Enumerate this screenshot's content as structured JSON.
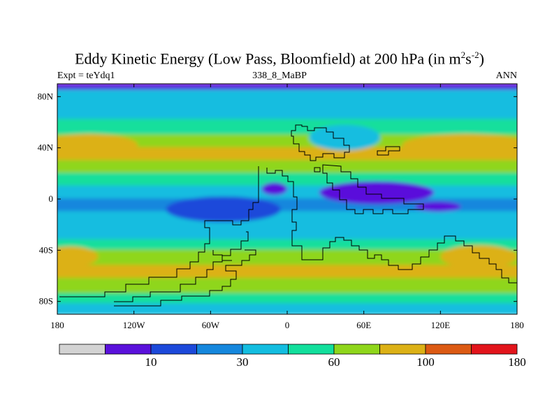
{
  "chart_data": {
    "type": "heatmap",
    "title": "Eddy Kinetic Energy (Low Pass, Bloomfield) at 200 hPa (in m",
    "title_sup1": "2",
    "title_mid": "s",
    "title_sup2": "-2",
    "title_end": ")",
    "subtitle_left": "Expt = teYdq1",
    "subtitle_center": "338_8_MaBP",
    "subtitle_right": "ANN",
    "x_range": [
      -180,
      180
    ],
    "y_range": [
      -90,
      90
    ],
    "x_ticks": [
      {
        "value": -180,
        "label": "180"
      },
      {
        "value": -120,
        "label": "120W"
      },
      {
        "value": -60,
        "label": "60W"
      },
      {
        "value": 0,
        "label": "0"
      },
      {
        "value": 60,
        "label": "60E"
      },
      {
        "value": 120,
        "label": "120E"
      },
      {
        "value": 180,
        "label": "180"
      }
    ],
    "y_ticks": [
      {
        "value": 80,
        "label": "80N"
      },
      {
        "value": 40,
        "label": "40N"
      },
      {
        "value": 0,
        "label": "0"
      },
      {
        "value": -40,
        "label": "40S"
      },
      {
        "value": -80,
        "label": "80S"
      }
    ],
    "colorbar": {
      "colors": [
        "#d3d3d3",
        "#5a11db",
        "#1c49da",
        "#1587dd",
        "#13bde0",
        "#12df9c",
        "#8fd61b",
        "#dcb116",
        "#dc5a13",
        "#e2141b"
      ],
      "labels": [
        {
          "boundary": 2,
          "label": "10"
        },
        {
          "boundary": 4,
          "label": "30"
        },
        {
          "boundary": 6,
          "label": "60"
        },
        {
          "boundary": 8,
          "label": "100"
        },
        {
          "boundary": 10,
          "label": "180"
        }
      ]
    },
    "bands": [
      {
        "lat": 90,
        "level": 1
      },
      {
        "lat": 85,
        "level": 4
      },
      {
        "lat": 75,
        "level": 4
      },
      {
        "lat": 62,
        "level": 5
      },
      {
        "lat": 50,
        "level": 6
      },
      {
        "lat": 40,
        "level": 7
      },
      {
        "lat": 30,
        "level": 6
      },
      {
        "lat": 20,
        "level": 5
      },
      {
        "lat": 10,
        "level": 4
      },
      {
        "lat": 0,
        "level": 3
      },
      {
        "lat": -10,
        "level": 4
      },
      {
        "lat": -22,
        "level": 4
      },
      {
        "lat": -32,
        "level": 5
      },
      {
        "lat": -40,
        "level": 6
      },
      {
        "lat": -52,
        "level": 7
      },
      {
        "lat": -62,
        "level": 6
      },
      {
        "lat": -74,
        "level": 5
      },
      {
        "lat": -82,
        "level": 4
      },
      {
        "lat": -90,
        "level": 3
      }
    ],
    "blobs": [
      {
        "region": "north-atlantic-jet",
        "lon": -155,
        "lat": 42,
        "rlon": 38,
        "rlat": 9,
        "level": 7
      },
      {
        "region": "north-pacific-jet",
        "lon": 140,
        "lat": 42,
        "rlon": 50,
        "rlat": 9,
        "level": 7
      },
      {
        "region": "north-continent-minimum",
        "lon": 45,
        "lat": 48,
        "rlon": 28,
        "rlat": 10,
        "level": 4
      },
      {
        "region": "tropical-minimum-west",
        "lon": -50,
        "lat": -8,
        "rlon": 45,
        "rlat": 10,
        "level": 2
      },
      {
        "region": "tropical-minimum-center",
        "lon": -10,
        "lat": 8,
        "rlon": 10,
        "rlat": 5,
        "level": 1
      },
      {
        "region": "tropical-minimum-east",
        "lon": 70,
        "lat": 5,
        "rlon": 45,
        "rlat": 9,
        "level": 1
      },
      {
        "region": "tropical-minimum-far-east",
        "lon": 118,
        "lat": -6,
        "rlon": 18,
        "rlat": 4,
        "level": 1
      },
      {
        "region": "southern-jet-west",
        "lon": -170,
        "lat": -45,
        "rlon": 22,
        "rlat": 8,
        "level": 7
      },
      {
        "region": "southern-jet-east",
        "lon": 150,
        "lat": -45,
        "rlon": 30,
        "rlat": 9,
        "level": 7
      }
    ]
  }
}
